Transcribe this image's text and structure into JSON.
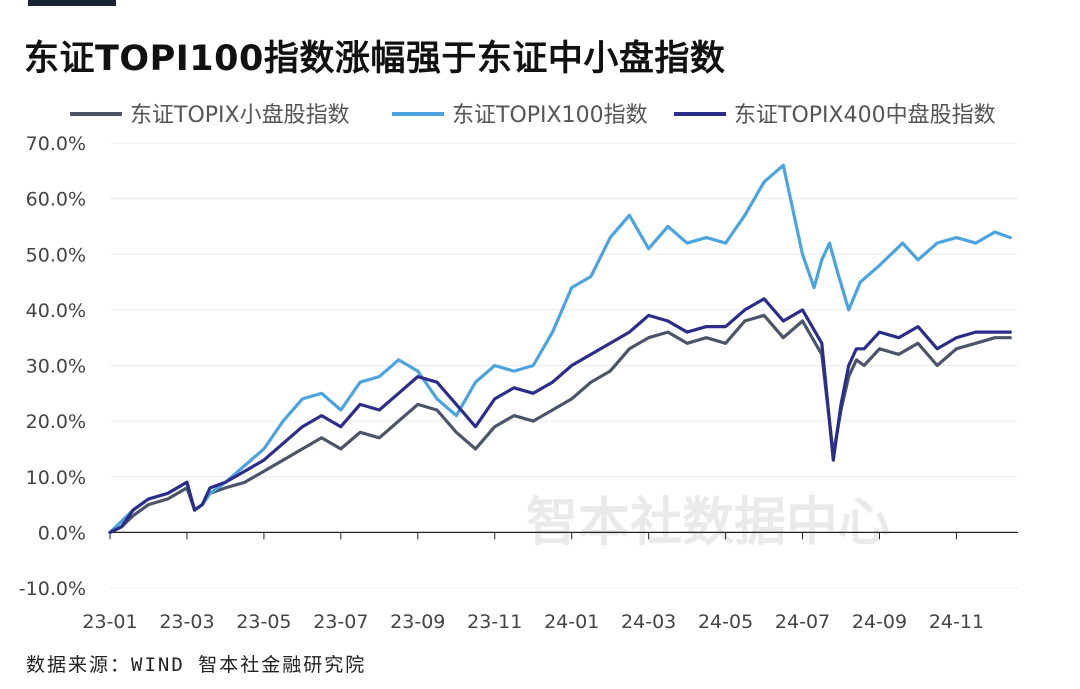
{
  "title": "东证TOPI100指数涨幅强于东证中小盘指数",
  "source": "数据来源：WIND 智本社金融研究院",
  "watermark": "智本社数据中心",
  "chart_data": {
    "type": "line",
    "ylim": [
      -10,
      70
    ],
    "yticks": [
      "70.0%",
      "60.0%",
      "50.0%",
      "40.0%",
      "30.0%",
      "20.0%",
      "10.0%",
      "0.0%",
      "-10.0%"
    ],
    "ytick_values": [
      70,
      60,
      50,
      40,
      30,
      20,
      10,
      0,
      -10
    ],
    "xticks": [
      "23-01",
      "23-03",
      "23-05",
      "23-07",
      "23-09",
      "23-11",
      "24-01",
      "24-03",
      "24-05",
      "24-07",
      "24-09",
      "24-11"
    ],
    "xlim": [
      0,
      23.6
    ],
    "legend_position": "top",
    "series": [
      {
        "name": "东证TOPIX小盘股指数",
        "color": "#4a5568",
        "x": [
          0,
          0.3,
          0.6,
          1,
          1.5,
          2,
          2.2,
          2.4,
          2.6,
          3,
          3.5,
          4,
          4.5,
          5,
          5.5,
          6,
          6.5,
          7,
          7.5,
          8,
          8.5,
          9,
          9.5,
          10,
          10.5,
          11,
          11.5,
          12,
          12.5,
          13,
          13.5,
          14,
          14.5,
          15,
          15.5,
          16,
          16.5,
          17,
          17.5,
          18,
          18.5,
          18.8,
          19,
          19.2,
          19.4,
          19.6,
          20,
          20.5,
          21,
          21.5,
          22,
          22.5,
          23,
          23.4
        ],
        "values": [
          0,
          1,
          3,
          5,
          6,
          8,
          4,
          5,
          7,
          8,
          9,
          11,
          13,
          15,
          17,
          15,
          18,
          17,
          20,
          23,
          22,
          18,
          15,
          19,
          21,
          20,
          22,
          24,
          27,
          29,
          33,
          35,
          36,
          34,
          35,
          34,
          38,
          39,
          35,
          38,
          32,
          14,
          22,
          28,
          31,
          30,
          33,
          32,
          34,
          30,
          33,
          34,
          35,
          35
        ]
      },
      {
        "name": "东证TOPIX100指数",
        "color": "#4ba3e0",
        "x": [
          0,
          0.3,
          0.6,
          1,
          1.5,
          2,
          2.2,
          2.4,
          2.6,
          3,
          3.5,
          4,
          4.5,
          5,
          5.5,
          6,
          6.5,
          7,
          7.5,
          8,
          8.5,
          9,
          9.5,
          10,
          10.5,
          11,
          11.5,
          12,
          12.5,
          13,
          13.5,
          14,
          14.5,
          15,
          15.5,
          16,
          16.5,
          17,
          17.5,
          18,
          18.3,
          18.5,
          18.7,
          18.9,
          19.2,
          19.5,
          20,
          20.3,
          20.6,
          21,
          21.5,
          22,
          22.5,
          23,
          23.4
        ],
        "values": [
          0,
          2,
          4,
          6,
          7,
          9,
          4,
          5,
          7,
          9,
          12,
          15,
          20,
          24,
          25,
          22,
          27,
          28,
          31,
          29,
          24,
          21,
          27,
          30,
          29,
          30,
          36,
          44,
          46,
          53,
          57,
          51,
          55,
          52,
          53,
          52,
          57,
          63,
          66,
          50,
          44,
          49,
          52,
          47,
          40,
          45,
          48,
          50,
          52,
          49,
          52,
          53,
          52,
          54,
          53
        ]
      },
      {
        "name": "东证TOPIX400中盘股指数",
        "color": "#2b2d8a",
        "x": [
          0,
          0.3,
          0.6,
          1,
          1.5,
          2,
          2.2,
          2.4,
          2.6,
          3,
          3.5,
          4,
          4.5,
          5,
          5.5,
          6,
          6.5,
          7,
          7.5,
          8,
          8.5,
          9,
          9.5,
          10,
          10.5,
          11,
          11.5,
          12,
          12.5,
          13,
          13.5,
          14,
          14.5,
          15,
          15.5,
          16,
          16.5,
          17,
          17.5,
          18,
          18.5,
          18.8,
          19,
          19.2,
          19.4,
          19.6,
          20,
          20.5,
          21,
          21.5,
          22,
          22.5,
          23,
          23.4
        ],
        "values": [
          0,
          1,
          4,
          6,
          7,
          9,
          4,
          5,
          8,
          9,
          11,
          13,
          16,
          19,
          21,
          19,
          23,
          22,
          25,
          28,
          27,
          23,
          19,
          24,
          26,
          25,
          27,
          30,
          32,
          34,
          36,
          39,
          38,
          36,
          37,
          37,
          40,
          42,
          38,
          40,
          34,
          13,
          23,
          30,
          33,
          33,
          36,
          35,
          37,
          33,
          35,
          36,
          36,
          36
        ]
      }
    ]
  }
}
